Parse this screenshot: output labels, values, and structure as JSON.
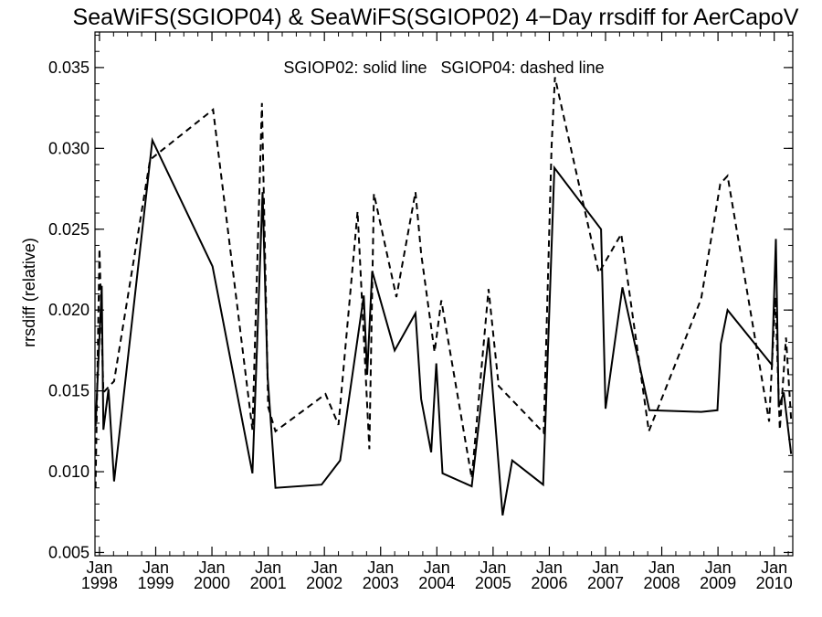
{
  "chart_data": {
    "type": "line",
    "title": "SeaWiFS(SGIOP04) & SeaWiFS(SGIOP02) 4−Day rrsdiff for AerCapoV",
    "xlabel": "",
    "ylabel": "rrsdiff (relative)",
    "annotation": "SGIOP02: solid line   SGIOP04: dashed line",
    "xlim": [
      1997.92,
      2010.33
    ],
    "ylim": [
      0.0048,
      0.0372
    ],
    "y_ticks": [
      0.005,
      0.01,
      0.015,
      0.02,
      0.025,
      0.03,
      0.035
    ],
    "y_tick_labels": [
      "0.005",
      "0.010",
      "0.015",
      "0.020",
      "0.025",
      "0.030",
      "0.035"
    ],
    "x_ticks": [
      {
        "value": 1998,
        "month": "Jan",
        "year": "1998"
      },
      {
        "value": 1999,
        "month": "Jan",
        "year": "1999"
      },
      {
        "value": 2000,
        "month": "Jan",
        "year": "2000"
      },
      {
        "value": 2001,
        "month": "Jan",
        "year": "2001"
      },
      {
        "value": 2002,
        "month": "Jan",
        "year": "2002"
      },
      {
        "value": 2003,
        "month": "Jan",
        "year": "2003"
      },
      {
        "value": 2004,
        "month": "Jan",
        "year": "2004"
      },
      {
        "value": 2005,
        "month": "Jan",
        "year": "2005"
      },
      {
        "value": 2006,
        "month": "Jan",
        "year": "2006"
      },
      {
        "value": 2007,
        "month": "Jan",
        "year": "2007"
      },
      {
        "value": 2008,
        "month": "Jan",
        "year": "2008"
      },
      {
        "value": 2009,
        "month": "Jan",
        "year": "2009"
      },
      {
        "value": 2010,
        "month": "Jan",
        "year": "2010"
      }
    ],
    "grid": false,
    "series": [
      {
        "name": "SGIOP02",
        "style": "solid",
        "color": "#000000",
        "points": [
          [
            1997.93,
            0.0128
          ],
          [
            1998.04,
            0.0215
          ],
          [
            1998.07,
            0.0126
          ],
          [
            1998.16,
            0.0151
          ],
          [
            1998.26,
            0.0094
          ],
          [
            1998.94,
            0.0305
          ],
          [
            2000.01,
            0.0227
          ],
          [
            2000.72,
            0.0099
          ],
          [
            2000.9,
            0.0273
          ],
          [
            2000.99,
            0.0159
          ],
          [
            2001.13,
            0.009
          ],
          [
            2001.95,
            0.0092
          ],
          [
            2002.28,
            0.0107
          ],
          [
            2002.7,
            0.0209
          ],
          [
            2002.76,
            0.016
          ],
          [
            2002.85,
            0.0224
          ],
          [
            2003.25,
            0.0175
          ],
          [
            2003.62,
            0.0198
          ],
          [
            2003.72,
            0.0145
          ],
          [
            2003.9,
            0.0112
          ],
          [
            2003.99,
            0.0167
          ],
          [
            2004.1,
            0.0099
          ],
          [
            2004.62,
            0.0091
          ],
          [
            2004.92,
            0.0183
          ],
          [
            2005.17,
            0.0073
          ],
          [
            2005.34,
            0.0107
          ],
          [
            2005.89,
            0.0092
          ],
          [
            2006.09,
            0.0288
          ],
          [
            2006.92,
            0.025
          ],
          [
            2007.0,
            0.0139
          ],
          [
            2007.3,
            0.0214
          ],
          [
            2007.78,
            0.0138
          ],
          [
            2008.7,
            0.0137
          ],
          [
            2008.99,
            0.0138
          ],
          [
            2009.05,
            0.0179
          ],
          [
            2009.17,
            0.02
          ],
          [
            2009.96,
            0.0166
          ],
          [
            2010.03,
            0.0244
          ],
          [
            2010.08,
            0.014
          ],
          [
            2010.17,
            0.0149
          ],
          [
            2010.3,
            0.0111
          ]
        ]
      },
      {
        "name": "SGIOP04",
        "style": "dashed",
        "color": "#000000",
        "points": [
          [
            1997.93,
            0.009
          ],
          [
            1998.0,
            0.0238
          ],
          [
            1998.07,
            0.0149
          ],
          [
            1998.26,
            0.0156
          ],
          [
            1998.9,
            0.0293
          ],
          [
            2000.02,
            0.0324
          ],
          [
            2000.72,
            0.0126
          ],
          [
            2000.89,
            0.0328
          ],
          [
            2001.0,
            0.014
          ],
          [
            2001.13,
            0.0125
          ],
          [
            2002.02,
            0.0148
          ],
          [
            2002.25,
            0.0129
          ],
          [
            2002.59,
            0.0261
          ],
          [
            2002.8,
            0.0114
          ],
          [
            2002.88,
            0.0272
          ],
          [
            2003.28,
            0.0208
          ],
          [
            2003.62,
            0.0273
          ],
          [
            2003.72,
            0.0235
          ],
          [
            2003.96,
            0.0174
          ],
          [
            2004.08,
            0.0206
          ],
          [
            2004.62,
            0.0096
          ],
          [
            2004.92,
            0.0213
          ],
          [
            2005.1,
            0.0153
          ],
          [
            2005.9,
            0.0124
          ],
          [
            2006.04,
            0.0301
          ],
          [
            2006.1,
            0.0344
          ],
          [
            2006.88,
            0.0223
          ],
          [
            2007.28,
            0.0247
          ],
          [
            2007.77,
            0.0125
          ],
          [
            2008.7,
            0.0207
          ],
          [
            2009.04,
            0.0278
          ],
          [
            2009.17,
            0.0283
          ],
          [
            2009.91,
            0.0131
          ],
          [
            2010.02,
            0.0208
          ],
          [
            2010.1,
            0.0126
          ],
          [
            2010.21,
            0.0183
          ],
          [
            2010.3,
            0.0132
          ]
        ]
      }
    ]
  }
}
